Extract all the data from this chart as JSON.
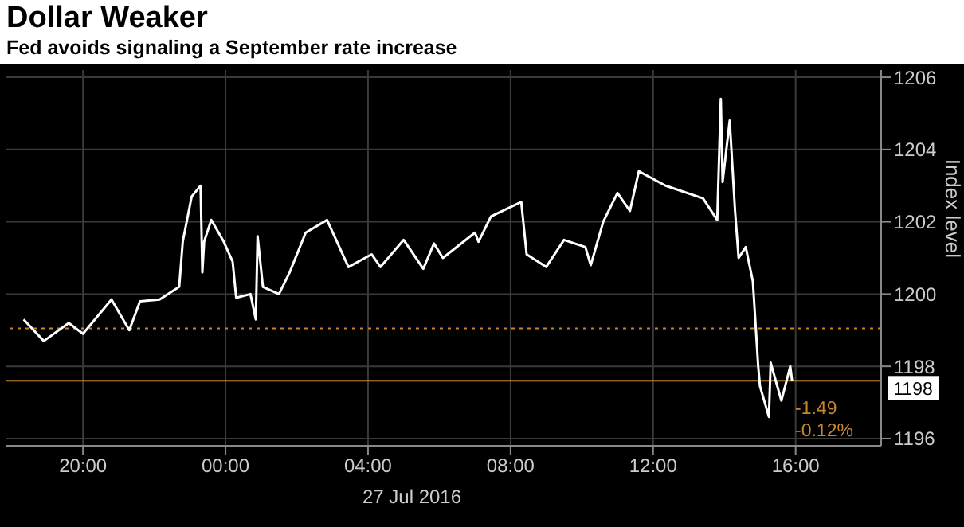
{
  "chart_data": {
    "type": "line",
    "title": "Dollar Weaker",
    "subtitle": "Fed avoids signaling a September rate increase",
    "xlabel": "27 Jul 2016",
    "ylabel": "Index level",
    "x": [
      "2016-07-26T18:20",
      "2016-07-26T18:54",
      "2016-07-26T19:36",
      "2016-07-26T20:00",
      "2016-07-26T20:48",
      "2016-07-26T21:18",
      "2016-07-26T21:36",
      "2016-07-26T22:09",
      "2016-07-26T22:42",
      "2016-07-26T22:48",
      "2016-07-26T23:03",
      "2016-07-26T23:18",
      "2016-07-26T23:21",
      "2016-07-26T23:24",
      "2016-07-26T23:36",
      "2016-07-26T23:57",
      "2016-07-27T00:12",
      "2016-07-27T00:18",
      "2016-07-27T00:42",
      "2016-07-27T00:51",
      "2016-07-27T00:54",
      "2016-07-27T01:03",
      "2016-07-27T01:30",
      "2016-07-27T01:48",
      "2016-07-27T02:15",
      "2016-07-27T02:51",
      "2016-07-27T03:27",
      "2016-07-27T04:06",
      "2016-07-27T04:21",
      "2016-07-27T05:00",
      "2016-07-27T05:33",
      "2016-07-27T05:51",
      "2016-07-27T06:06",
      "2016-07-27T07:00",
      "2016-07-27T07:06",
      "2016-07-27T07:27",
      "2016-07-27T08:18",
      "2016-07-27T08:27",
      "2016-07-27T09:00",
      "2016-07-27T09:30",
      "2016-07-27T10:06",
      "2016-07-27T10:15",
      "2016-07-27T10:36",
      "2016-07-27T11:00",
      "2016-07-27T11:21",
      "2016-07-27T11:36",
      "2016-07-27T12:21",
      "2016-07-27T13:24",
      "2016-07-27T13:48",
      "2016-07-27T13:54",
      "2016-07-27T13:57",
      "2016-07-27T14:09",
      "2016-07-27T14:18",
      "2016-07-27T14:24",
      "2016-07-27T14:36",
      "2016-07-27T14:48",
      "2016-07-27T14:57",
      "2016-07-27T15:00",
      "2016-07-27T15:15",
      "2016-07-27T15:18",
      "2016-07-27T15:36",
      "2016-07-27T15:51",
      "2016-07-27T15:54"
    ],
    "series": [
      {
        "color": "#ffffff",
        "values": [
          1199.3,
          1198.7,
          1199.2,
          1198.9,
          1199.85,
          1199.0,
          1199.8,
          1199.85,
          1200.2,
          1201.45,
          1202.7,
          1203.0,
          1200.6,
          1201.45,
          1202.05,
          1201.45,
          1200.9,
          1199.9,
          1200.0,
          1199.3,
          1201.6,
          1200.2,
          1200.0,
          1200.6,
          1201.7,
          1202.05,
          1200.75,
          1201.1,
          1200.75,
          1201.5,
          1200.7,
          1201.4,
          1201.0,
          1201.7,
          1201.45,
          1202.15,
          1202.55,
          1201.1,
          1200.75,
          1201.5,
          1201.3,
          1200.8,
          1202.0,
          1202.8,
          1202.3,
          1203.4,
          1203.0,
          1202.65,
          1202.05,
          1205.4,
          1203.1,
          1204.8,
          1202.3,
          1201.0,
          1201.3,
          1200.35,
          1198.0,
          1197.45,
          1196.6,
          1198.1,
          1197.05,
          1198.0,
          1197.6
        ]
      }
    ],
    "xlim": [
      "2016-07-26T17:51",
      "2016-07-27T18:24"
    ],
    "xticks": [
      {
        "value": "2016-07-26T20:00",
        "label": "20:00"
      },
      {
        "value": "2016-07-27T00:00",
        "label": "00:00"
      },
      {
        "value": "2016-07-27T04:00",
        "label": "04:00"
      },
      {
        "value": "2016-07-27T08:00",
        "label": "08:00"
      },
      {
        "value": "2016-07-27T12:00",
        "label": "12:00"
      },
      {
        "value": "2016-07-27T16:00",
        "label": "16:00"
      }
    ],
    "ylim": [
      1195.8,
      1206.2
    ],
    "yticks": [
      1196,
      1198,
      1200,
      1202,
      1204,
      1206
    ],
    "ref_lines": [
      {
        "axis": "y",
        "value": 1199.05,
        "color": "#c8862b",
        "line_style": "dotted"
      },
      {
        "axis": "y",
        "value": 1197.6,
        "label": "1198",
        "color": "#c8862b",
        "line_style": "solid"
      }
    ],
    "annotations": [
      "-1.49",
      "-0.12%"
    ],
    "grid": true,
    "legend": false,
    "marker": "none",
    "line_style": "solid"
  }
}
